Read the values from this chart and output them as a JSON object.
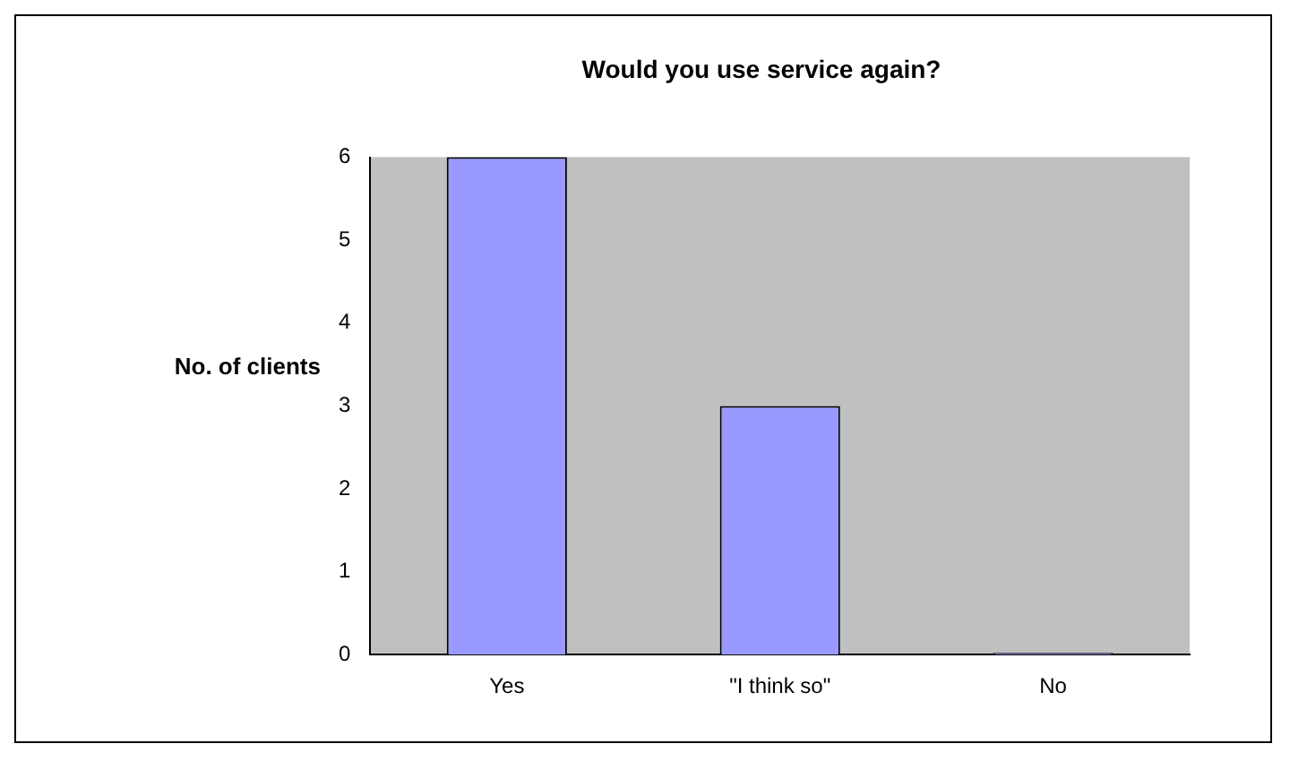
{
  "chart_data": {
    "type": "bar",
    "title": "Would you use service again?",
    "ylabel": "No. of clients",
    "categories": [
      "Yes",
      "\"I think so\"",
      "No"
    ],
    "values": [
      6,
      3,
      0
    ],
    "color": "#9999ff",
    "ylim": [
      0,
      6
    ],
    "yticks": [
      0,
      1,
      2,
      3,
      4,
      5,
      6
    ],
    "grid": false,
    "legend": false
  }
}
